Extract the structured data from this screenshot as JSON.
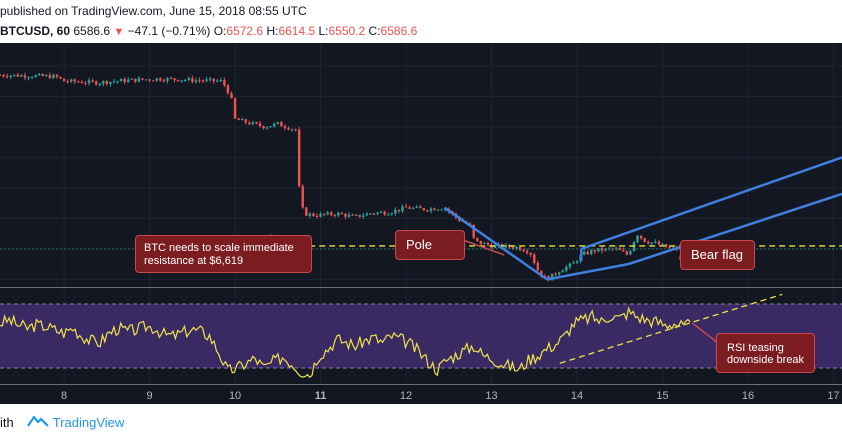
{
  "header": {
    "published_line": "published on TradingView.com, June 15, 2018 08:55 UTC",
    "symbol": "BTCUSD, 60",
    "last": "6586.6",
    "change": "−47.1 (−0.71%)",
    "o_label": "O:",
    "o_value": "6572.6",
    "h_label": "H:",
    "h_value": "6614.5",
    "l_label": "L:",
    "l_value": "6550.2",
    "c_label": "C:",
    "c_value": "6586.6",
    "down_arrow": "▼"
  },
  "footer": {
    "with_text": "ith",
    "brand": "TradingView"
  },
  "annotations": {
    "resistance": "BTC needs to scale immediate resistance at $6,619",
    "pole": "Pole",
    "bear_flag": "Bear flag",
    "rsi": "RSI teasing downside break"
  },
  "colors": {
    "background": "#131722",
    "bull": "#26a69a",
    "bear": "#ef5350",
    "trendline": "#3f7fe0",
    "level_dash": "#e6e23a",
    "rsi_line": "#f2e34a",
    "rsi_band": "#3a2a63",
    "annotation_box": "#7b1c20"
  },
  "chart_data": [
    {
      "type": "candlestick",
      "title": "BTCUSD, 60",
      "x_ticks": [
        "8",
        "9",
        "10",
        "11",
        "12",
        "13",
        "14",
        "15",
        "16",
        "17"
      ],
      "x_range": [
        7.25,
        17.1
      ],
      "price_range": [
        6350,
        7950
      ],
      "series_points": [
        [
          7.25,
          7740
        ],
        [
          7.6,
          7735
        ],
        [
          7.9,
          7730
        ],
        [
          8.0,
          7700
        ],
        [
          8.4,
          7690
        ],
        [
          8.6,
          7700
        ],
        [
          8.9,
          7710
        ],
        [
          9.1,
          7715
        ],
        [
          9.3,
          7712
        ],
        [
          9.6,
          7705
        ],
        [
          9.85,
          7700
        ],
        [
          9.95,
          7600
        ],
        [
          10.0,
          7450
        ],
        [
          10.2,
          7420
        ],
        [
          10.35,
          7400
        ],
        [
          10.5,
          7420
        ],
        [
          10.6,
          7400
        ],
        [
          10.72,
          7380
        ],
        [
          10.75,
          7000
        ],
        [
          10.8,
          6830
        ],
        [
          10.95,
          6820
        ],
        [
          11.2,
          6830
        ],
        [
          11.4,
          6810
        ],
        [
          11.6,
          6835
        ],
        [
          11.8,
          6840
        ],
        [
          12.0,
          6870
        ],
        [
          12.2,
          6860
        ],
        [
          12.45,
          6870
        ],
        [
          12.6,
          6800
        ],
        [
          12.75,
          6750
        ],
        [
          12.8,
          6650
        ],
        [
          13.0,
          6620
        ],
        [
          13.3,
          6610
        ],
        [
          13.45,
          6580
        ],
        [
          13.55,
          6450
        ],
        [
          13.65,
          6400
        ],
        [
          13.8,
          6460
        ],
        [
          13.95,
          6500
        ],
        [
          14.05,
          6560
        ],
        [
          14.2,
          6590
        ],
        [
          14.45,
          6600
        ],
        [
          14.6,
          6560
        ],
        [
          14.7,
          6700
        ],
        [
          14.8,
          6650
        ],
        [
          14.9,
          6640
        ],
        [
          15.1,
          6600
        ],
        [
          15.25,
          6600
        ],
        [
          15.35,
          6590
        ]
      ],
      "resistance_level": 6619,
      "lower_level": 6600,
      "pole": {
        "from": [
          12.45,
          6870
        ],
        "to": [
          13.65,
          6400
        ]
      },
      "channel_upper": {
        "from": [
          14.05,
          6600
        ],
        "to": [
          17.1,
          7200
        ]
      },
      "channel_lower": {
        "from": [
          14.6,
          6500
        ],
        "to": [
          17.1,
          6960
        ]
      },
      "rsi": {
        "range": [
          20,
          80
        ],
        "upper_band": 70,
        "lower_band": 30,
        "values": [
          58,
          60,
          57,
          55,
          57,
          56,
          54,
          52,
          55,
          50,
          47,
          46,
          52,
          55,
          53,
          54,
          56,
          55,
          51,
          50,
          52,
          54,
          53,
          50,
          40,
          28,
          30,
          33,
          36,
          30,
          34,
          37,
          33,
          28,
          26,
          38,
          42,
          48,
          46,
          44,
          47,
          49,
          46,
          50,
          48,
          45,
          40,
          34,
          29,
          35,
          38,
          41,
          44,
          38,
          36,
          33,
          31,
          29,
          35,
          38,
          42,
          45,
          50,
          58,
          60,
          62,
          59,
          63,
          61,
          65,
          62,
          60,
          59,
          57,
          58,
          56,
          57
        ]
      }
    }
  ]
}
